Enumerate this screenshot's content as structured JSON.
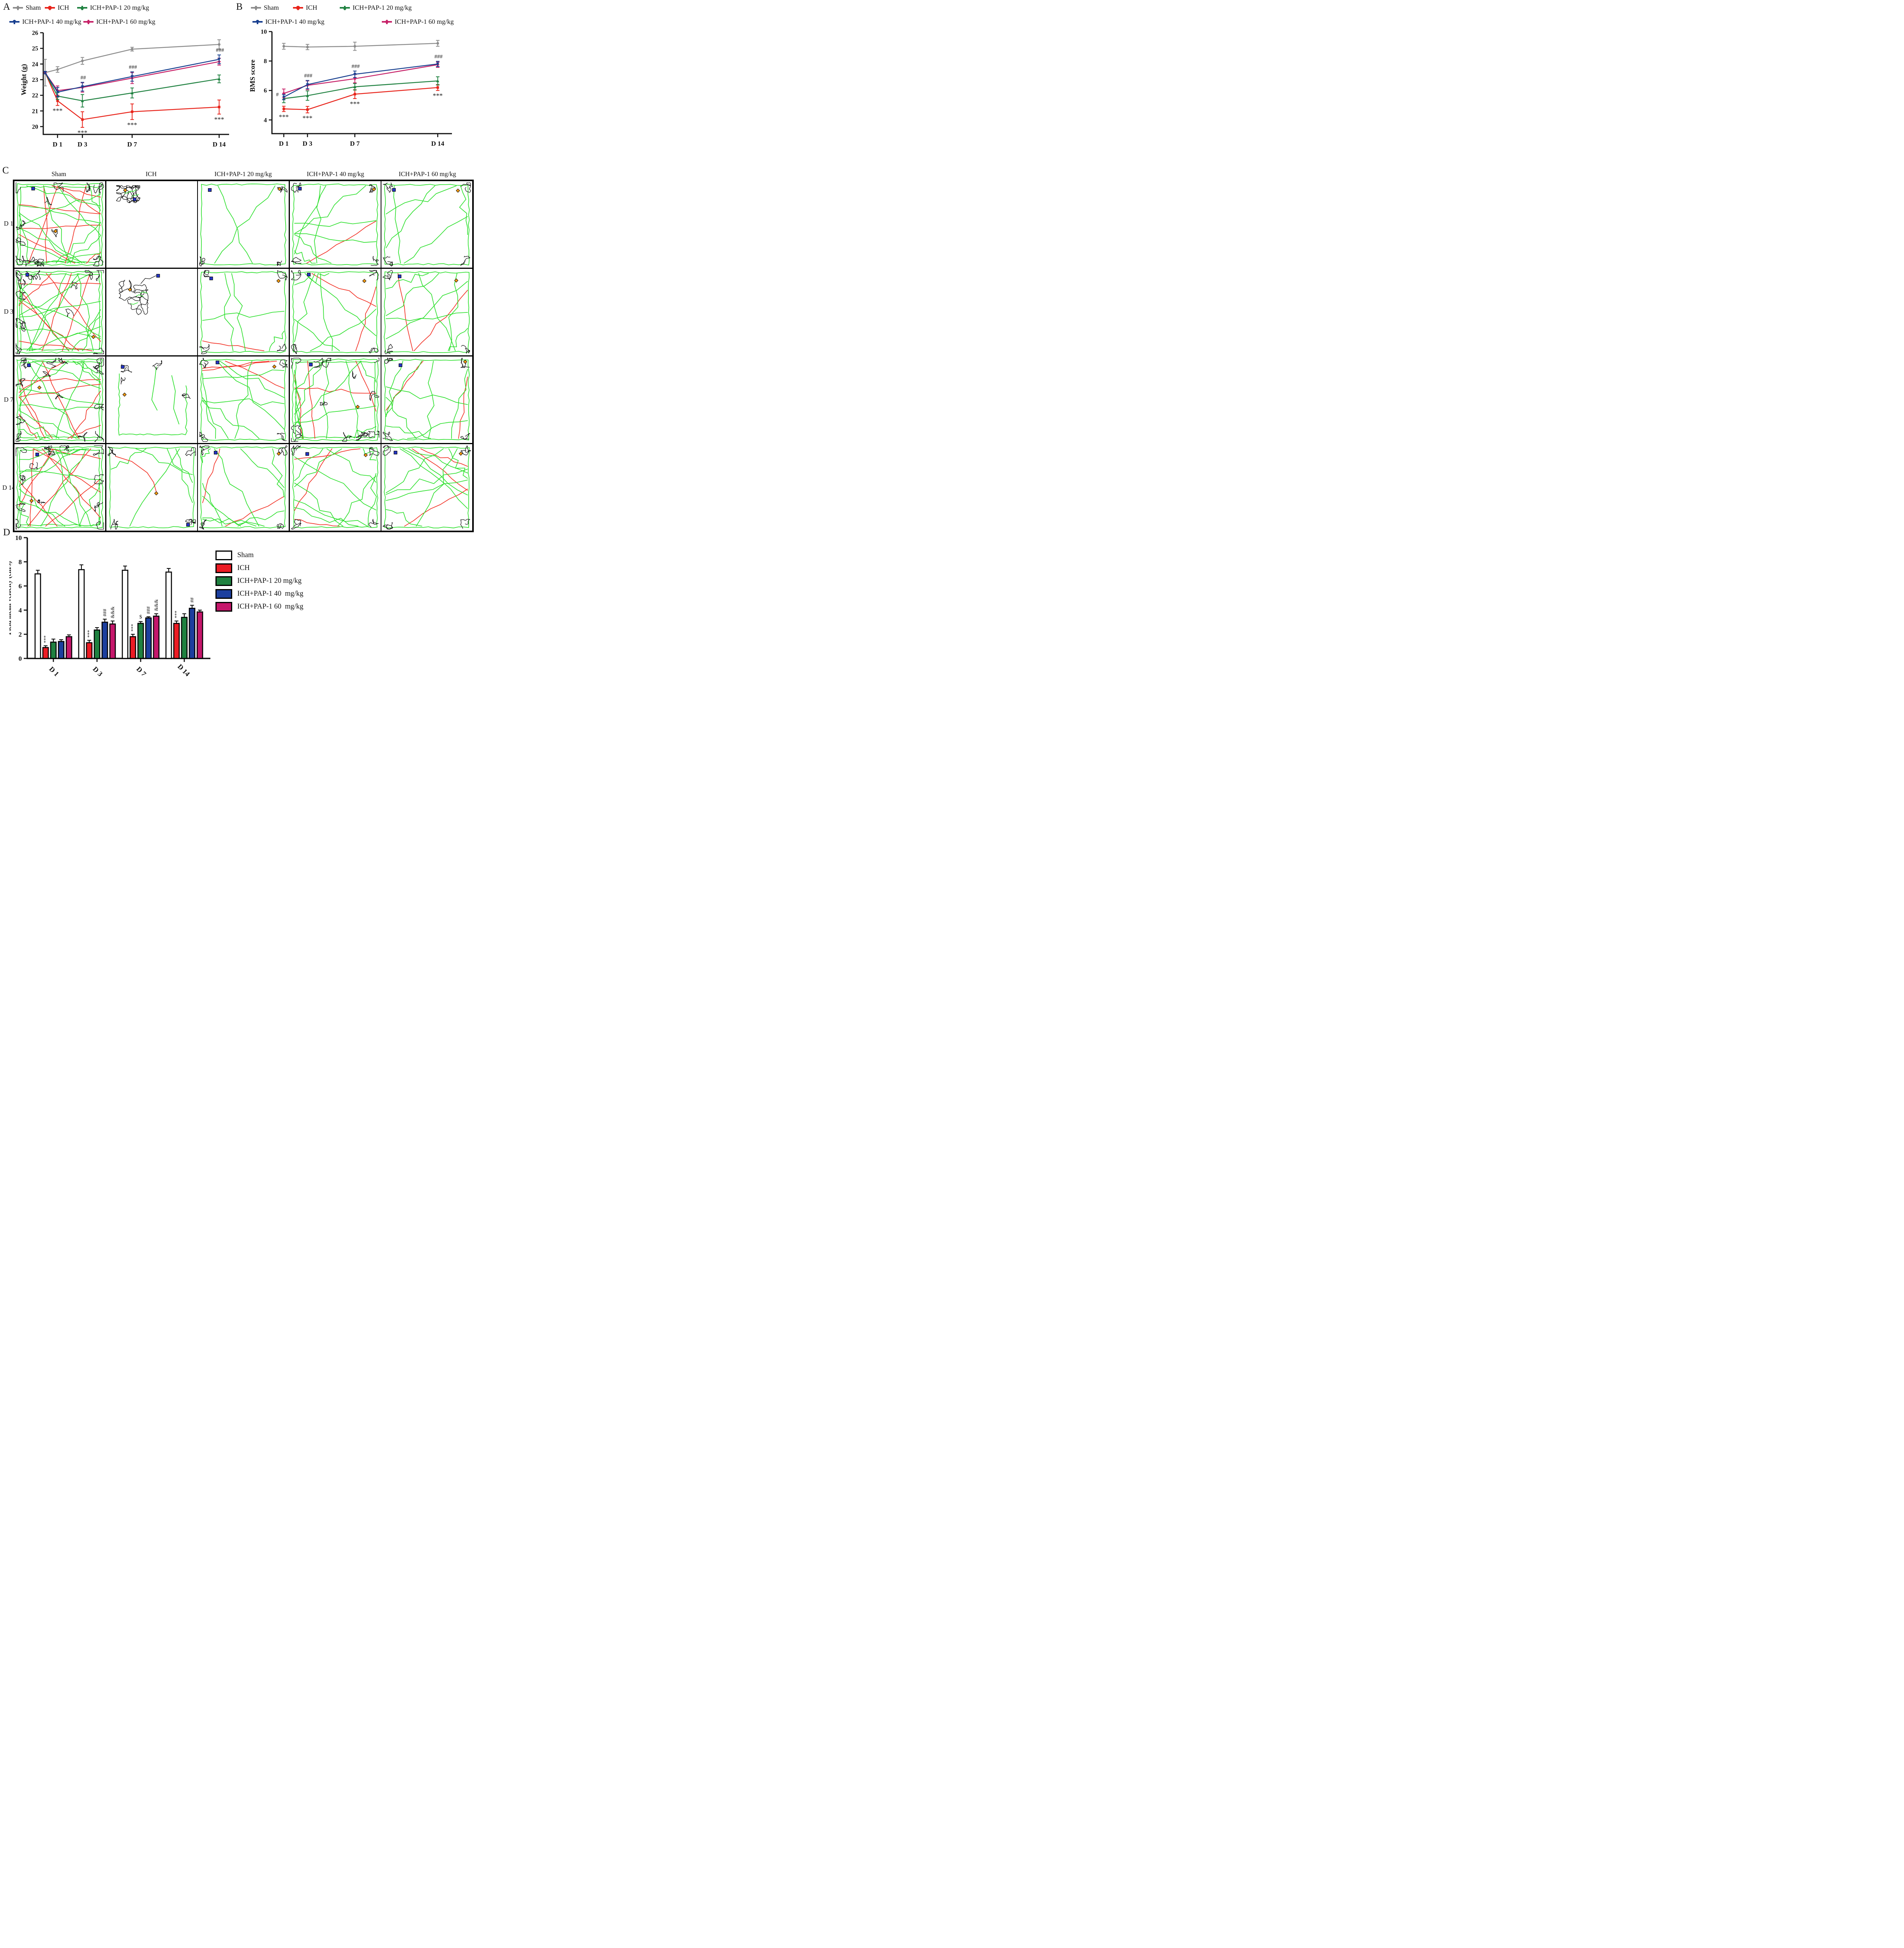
{
  "figure": {
    "panel_labels": {
      "a": "A",
      "b": "B",
      "c": "C",
      "d": "D"
    }
  },
  "groups": [
    {
      "name": "Sham",
      "color": "#8c8c8c",
      "bar_fill": "#ffffff",
      "marker": "circle"
    },
    {
      "name": "ICH",
      "color": "#e8231a",
      "bar_fill": "#ec1c24",
      "marker": "square"
    },
    {
      "name": "ICH+PAP-1 20 mg/kg",
      "color": "#1f8140",
      "bar_fill": "#1f8140",
      "marker": "tri"
    },
    {
      "name": "ICH+PAP-1 40 mg/kg",
      "color": "#183f8f",
      "bar_fill": "#1c3f9e",
      "marker": "trid"
    },
    {
      "name": "ICH+PAP-1 60 mg/kg",
      "color": "#c62168",
      "bar_fill": "#c5176b",
      "marker": "diamond"
    }
  ],
  "chart_data": [
    {
      "id": "weight",
      "panel": "A",
      "type": "line",
      "ylabel": "Weight (g)",
      "ylim": [
        19.5,
        26
      ],
      "yticks": [
        20,
        21,
        22,
        23,
        24,
        25,
        26
      ],
      "x_days": [
        0,
        1,
        3,
        7,
        14
      ],
      "xlim": [
        -0.15,
        14.8
      ],
      "xtick_days": [
        1,
        3,
        7,
        14
      ],
      "xtick_labels": [
        "D 1",
        "D 3",
        "D 7",
        "D 14"
      ],
      "grid": false,
      "legend_position": "top",
      "series": [
        {
          "name": "Sham",
          "values": [
            23.45,
            23.65,
            24.2,
            24.95,
            25.25
          ],
          "errors": [
            0.85,
            0.18,
            0.22,
            0.12,
            0.3
          ],
          "annotations": [
            null,
            null,
            null,
            null,
            null
          ]
        },
        {
          "name": "ICH",
          "values": [
            23.45,
            21.65,
            20.45,
            20.95,
            21.25
          ],
          "errors": [
            0.08,
            0.3,
            0.5,
            0.5,
            0.45
          ],
          "annotations": [
            null,
            "***",
            "***",
            "***",
            "***"
          ],
          "ann_pos": "below"
        },
        {
          "name": "ICH+PAP-1 20 mg/kg",
          "values": [
            23.45,
            21.95,
            21.65,
            22.15,
            23.05
          ],
          "errors": [
            0.08,
            0.22,
            0.4,
            0.32,
            0.25
          ],
          "annotations": [
            null,
            null,
            null,
            null,
            null
          ]
        },
        {
          "name": "ICH+PAP-1 60 mg/kg",
          "values": [
            23.45,
            22.3,
            22.5,
            23.1,
            24.15
          ],
          "errors": [
            0.08,
            0.3,
            0.3,
            0.35,
            0.22
          ],
          "annotations": [
            null,
            null,
            null,
            null,
            null
          ]
        },
        {
          "name": "ICH+PAP-1 40 mg/kg",
          "values": [
            23.45,
            22.2,
            22.55,
            23.2,
            24.3
          ],
          "errors": [
            0.08,
            0.3,
            0.28,
            0.3,
            0.28
          ],
          "annotations": [
            null,
            null,
            "##",
            "###",
            "###"
          ],
          "ann_pos": "above"
        }
      ]
    },
    {
      "id": "bms",
      "panel": "B",
      "type": "line",
      "ylabel": "BMS score",
      "ylim": [
        3.07,
        10
      ],
      "yticks": [
        4,
        6,
        8,
        10
      ],
      "x_days": [
        1,
        3,
        7,
        14
      ],
      "xlim": [
        0,
        15.2
      ],
      "xtick_days": [
        1,
        3,
        7,
        14
      ],
      "xtick_labels": [
        "D 1",
        "D 3",
        "D 7",
        "D 14"
      ],
      "grid": false,
      "legend_position": "top",
      "series": [
        {
          "name": "Sham",
          "values": [
            9.0,
            8.95,
            9.0,
            9.2
          ],
          "errors": [
            0.2,
            0.18,
            0.28,
            0.2
          ],
          "annotations": [
            null,
            null,
            null,
            null
          ]
        },
        {
          "name": "ICH",
          "values": [
            4.75,
            4.7,
            5.75,
            6.2
          ],
          "errors": [
            0.18,
            0.22,
            0.3,
            0.2
          ],
          "annotations": [
            "***",
            "***",
            "***",
            "***"
          ],
          "ann_pos": "below"
        },
        {
          "name": "ICH+PAP-1 20 mg/kg",
          "values": [
            5.45,
            5.65,
            6.25,
            6.65
          ],
          "errors": [
            0.28,
            0.32,
            0.22,
            0.28
          ],
          "annotations": [
            null,
            null,
            null,
            null
          ]
        },
        {
          "name": "ICH+PAP-1 60 mg/kg",
          "values": [
            5.8,
            6.35,
            6.8,
            7.75
          ],
          "errors": [
            0.3,
            0.3,
            0.28,
            0.18
          ],
          "annotations": [
            null,
            null,
            null,
            null
          ]
        },
        {
          "name": "ICH+PAP-1 40 mg/kg",
          "values": [
            5.55,
            6.4,
            7.1,
            7.8
          ],
          "errors": [
            0.18,
            0.28,
            0.22,
            0.18
          ],
          "annotations": [
            "#",
            "###",
            "###",
            "###"
          ],
          "ann_pos": "above"
        }
      ]
    },
    {
      "id": "velocity",
      "panel": "D",
      "type": "bar",
      "ylabel": "Field mean velocity (cm/s)",
      "ylim": [
        0,
        10
      ],
      "yticks": [
        0,
        2,
        4,
        6,
        8,
        10
      ],
      "categories": [
        "D 1",
        "D 3",
        "D 7",
        "D 14"
      ],
      "grid": false,
      "legend_position": "right",
      "series": [
        {
          "name": "Sham",
          "values": [
            7.0,
            7.35,
            7.3,
            7.15
          ],
          "errors": [
            0.3,
            0.4,
            0.35,
            0.3
          ],
          "annotations": [
            null,
            null,
            null,
            null
          ]
        },
        {
          "name": "ICH",
          "values": [
            0.9,
            1.3,
            1.8,
            2.9
          ],
          "errors": [
            0.15,
            0.2,
            0.2,
            0.2
          ],
          "annotations": [
            "***",
            "***",
            "***",
            "***"
          ]
        },
        {
          "name": "ICH+PAP-1 20 mg/kg",
          "values": [
            1.35,
            2.35,
            2.9,
            3.4
          ],
          "errors": [
            0.25,
            0.2,
            0.15,
            0.3
          ],
          "annotations": [
            null,
            null,
            "$",
            null
          ]
        },
        {
          "name": "ICH+PAP-1 40 mg/kg",
          "values": [
            1.4,
            3.0,
            3.35,
            4.15
          ],
          "errors": [
            0.15,
            0.25,
            0.1,
            0.25
          ],
          "annotations": [
            null,
            "###",
            "###",
            "##"
          ]
        },
        {
          "name": "ICH+PAP-1 60 mg/kg",
          "values": [
            1.8,
            2.85,
            3.5,
            3.85
          ],
          "errors": [
            0.15,
            0.25,
            0.2,
            0.15
          ],
          "annotations": [
            null,
            "&&&",
            "&&&",
            null
          ]
        }
      ]
    }
  ],
  "panel_c": {
    "col_headers": [
      "Sham",
      "ICH",
      "ICH+PAP-1 20 mg/kg",
      "ICH+PAP-1 40 mg/kg",
      "ICH+PAP-1 60 mg/kg"
    ],
    "row_labels": [
      "D 1",
      "D 3",
      "D 7",
      "D 14"
    ],
    "track_colors": {
      "fast": "#2ee02e",
      "slow": "#f23125",
      "idle": "#111111",
      "start_marker": "#f59a10",
      "end_marker": "#2435c8"
    },
    "cells": [
      [
        {
          "style": "dense",
          "seed": 101,
          "g": 13,
          "r": 9
        },
        {
          "style": "blob",
          "seed": 102,
          "bx": 0.24,
          "by": 0.15,
          "brx": 0.13,
          "bry": 0.1,
          "tail": false
        },
        {
          "style": "perimeter",
          "seed": 103,
          "g": 2,
          "r": 0
        },
        {
          "style": "open",
          "seed": 104,
          "g": 7,
          "r": 1
        },
        {
          "style": "open",
          "seed": 105,
          "g": 5,
          "r": 0
        }
      ],
      [
        {
          "style": "dense",
          "seed": 106,
          "g": 13,
          "r": 8
        },
        {
          "style": "blob",
          "seed": 107,
          "bx": 0.3,
          "by": 0.33,
          "brx": 0.16,
          "bry": 0.2,
          "tail": true
        },
        {
          "style": "open",
          "seed": 108,
          "g": 4,
          "r": 1
        },
        {
          "style": "open",
          "seed": 109,
          "g": 6,
          "r": 2
        },
        {
          "style": "open",
          "seed": 110,
          "g": 7,
          "r": 2
        }
      ],
      [
        {
          "style": "dense",
          "seed": 111,
          "g": 13,
          "r": 9
        },
        {
          "style": "sparse",
          "seed": 112
        },
        {
          "style": "open",
          "seed": 113,
          "g": 8,
          "r": 3
        },
        {
          "style": "dense",
          "seed": 114,
          "g": 10,
          "r": 4
        },
        {
          "style": "open",
          "seed": 115,
          "g": 8,
          "r": 2
        }
      ],
      [
        {
          "style": "dense",
          "seed": 116,
          "g": 12,
          "r": 8
        },
        {
          "style": "loop",
          "seed": 117
        },
        {
          "style": "open",
          "seed": 118,
          "g": 9,
          "r": 2
        },
        {
          "style": "open",
          "seed": 119,
          "g": 10,
          "r": 3
        },
        {
          "style": "open",
          "seed": 120,
          "g": 9,
          "r": 3
        }
      ]
    ]
  },
  "legend_d": {
    "labels": [
      "Sham",
      "ICH",
      "ICH+PAP-1 20 mg/kg",
      "ICH+PAP-1 40  mg/kg",
      "ICH+PAP-1 60  mg/kg"
    ]
  }
}
